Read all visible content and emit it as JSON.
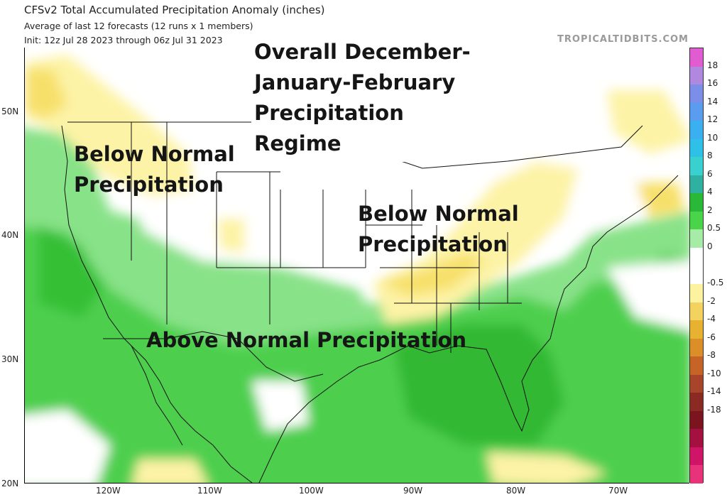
{
  "header": {
    "title": "CFSv2 Total Accumulated Precipitation Anomaly (inches)",
    "subtitle1": "Average of last 12 forecasts (12 runs x 1 members)",
    "subtitle2": "Init: 12z Jul 28 2023 through 06z Jul 31 2023",
    "credit": "TROPICALTIDBITS.COM"
  },
  "map": {
    "lat_labels": [
      "50N",
      "40N",
      "30N",
      "20N"
    ],
    "lon_labels": [
      "120W",
      "110W",
      "100W",
      "90W",
      "80W",
      "70W"
    ]
  },
  "annotations": {
    "overall": [
      "Overall December-",
      "January-February",
      "Precipitation",
      "Regime"
    ],
    "pnw": [
      "Below Normal",
      "Precipitation"
    ],
    "ohio": [
      "Below Normal",
      "Precipitation"
    ],
    "south": "Above Normal Precipitation"
  },
  "colorbar": {
    "labels": [
      "18",
      "16",
      "14",
      "12",
      "10",
      "8",
      "6",
      "4",
      "2",
      "0.5",
      "0",
      "-0.5",
      "-2",
      "-4",
      "-6",
      "-8",
      "-10",
      "-14",
      "-18"
    ],
    "colors": [
      "#e05cd0",
      "#b088e0",
      "#7c8fe8",
      "#5a9cf0",
      "#3ab0f0",
      "#2ec0e6",
      "#3ad0d0",
      "#30b0a0",
      "#2ab838",
      "#4ad44a",
      "#a6eca6",
      "#ffffff",
      "#ffffff",
      "#fdf2a0",
      "#f4d260",
      "#e6b230",
      "#dc8e28",
      "#c66428",
      "#a8442a",
      "#8a2a22",
      "#7c1420",
      "#a41040",
      "#d01468",
      "#e8337a"
    ]
  }
}
